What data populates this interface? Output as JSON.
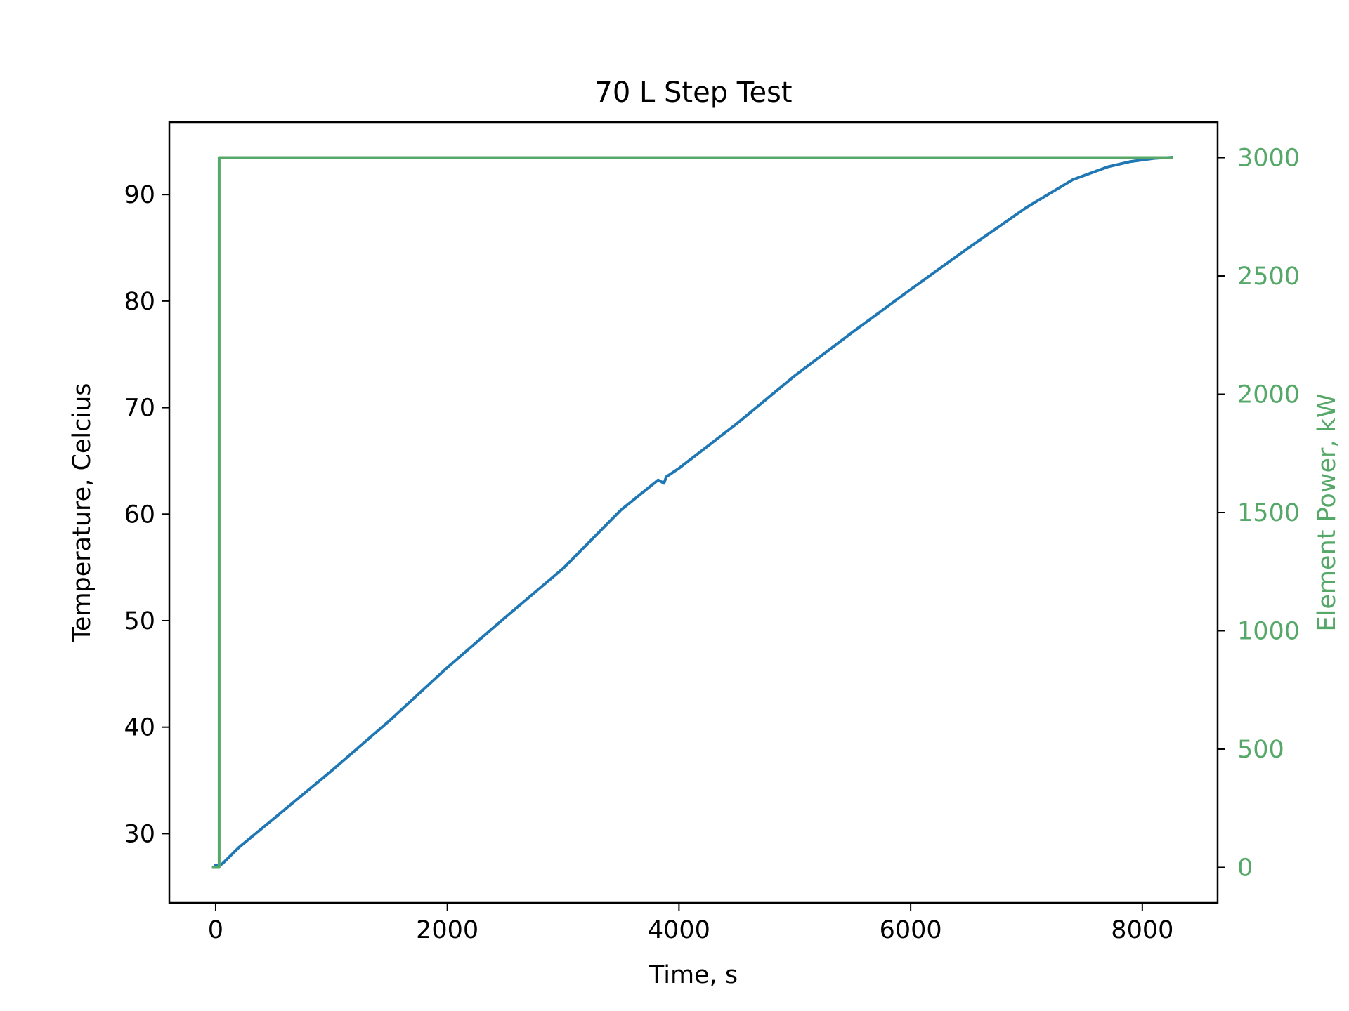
{
  "chart_data": {
    "type": "line",
    "title": "70 L Step Test",
    "xlabel": "Time, s",
    "ylabel_left": "Temperature, Celcius",
    "ylabel_right": "Element Power, kW",
    "xlim": [
      -400,
      8650
    ],
    "ylim_left": [
      23.5,
      96.8
    ],
    "ylim_right": [
      -150,
      3150
    ],
    "x_ticks": [
      0,
      2000,
      4000,
      6000,
      8000
    ],
    "y_ticks_left": [
      30,
      40,
      50,
      60,
      70,
      80,
      90
    ],
    "y_ticks_right": [
      0,
      500,
      1000,
      1500,
      2000,
      2500,
      3000
    ],
    "grid": false,
    "series": [
      {
        "axis": "left",
        "color": "#1f77b4",
        "x": [
          0,
          30,
          60,
          200,
          500,
          1000,
          1500,
          2000,
          2500,
          3000,
          3500,
          3820,
          3870,
          3890,
          4000,
          4500,
          5000,
          5500,
          6000,
          6500,
          7000,
          7400,
          7700,
          7900,
          8100,
          8250
        ],
        "y": [
          27.0,
          27.0,
          27.2,
          28.7,
          31.4,
          35.9,
          40.6,
          45.6,
          50.3,
          54.9,
          60.4,
          63.2,
          62.9,
          63.5,
          64.3,
          68.5,
          73.0,
          77.1,
          81.1,
          85.0,
          88.8,
          91.4,
          92.6,
          93.1,
          93.4,
          93.5
        ]
      },
      {
        "axis": "right",
        "color": "#55a868",
        "x": [
          -20,
          30,
          30,
          8250
        ],
        "y": [
          0,
          0,
          3000,
          3000
        ]
      }
    ]
  }
}
